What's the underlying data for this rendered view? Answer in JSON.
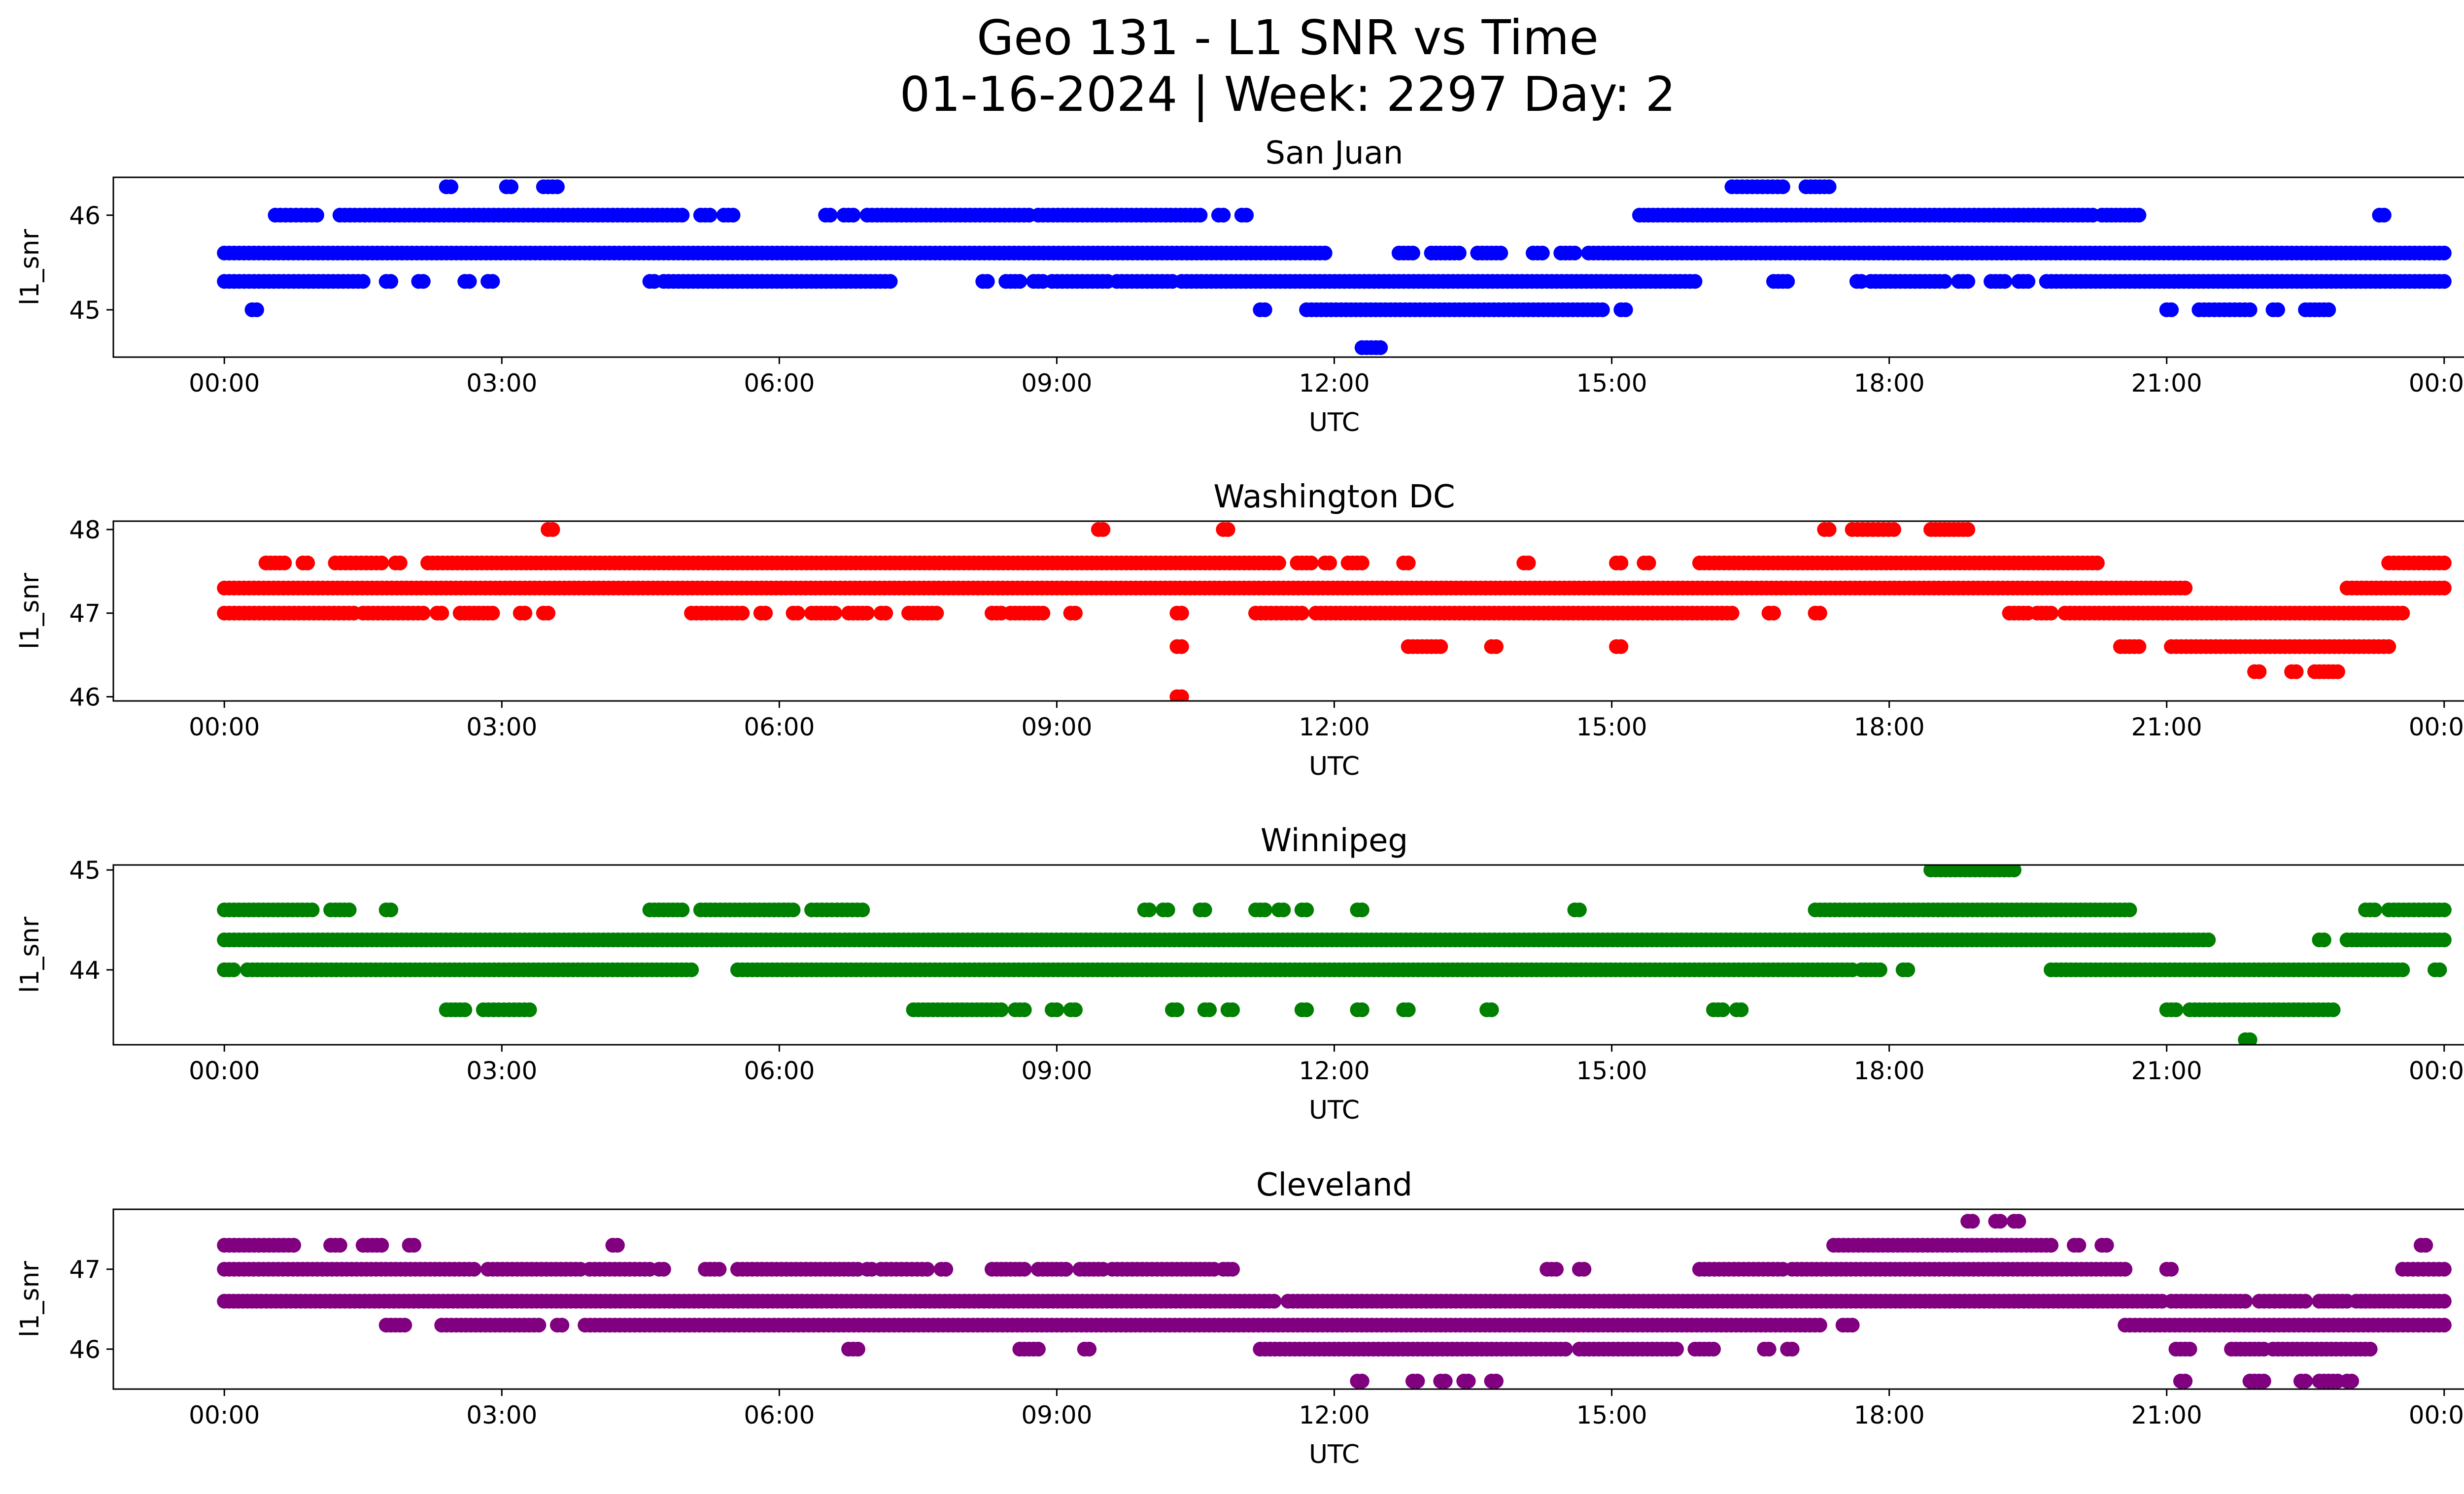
{
  "figure": {
    "title_line1": "Geo 131 - L1 SNR vs Time",
    "title_line2": "01-16-2024 | Week: 2297 Day: 2"
  },
  "chart_data": [
    {
      "type": "scatter",
      "title": "San Juan",
      "xlabel": "UTC",
      "ylabel": "l1_snr",
      "color": "#0000ff",
      "x_ticks": [
        "00:00",
        "03:00",
        "06:00",
        "09:00",
        "12:00",
        "15:00",
        "18:00",
        "21:00",
        "00:00"
      ],
      "x_range_hours": [
        -1.2,
        25.2
      ],
      "y_ticks": [
        45,
        46
      ],
      "ylim": [
        44.5,
        46.4
      ],
      "series": [
        {
          "y": 46.3,
          "runs": [
            [
              2.4,
              2.45
            ],
            [
              3.05,
              3.1
            ],
            [
              3.45,
              3.6
            ],
            [
              16.3,
              16.85
            ],
            [
              17.1,
              17.35
            ]
          ]
        },
        {
          "y": 46.0,
          "runs": [
            [
              0.55,
              1.0
            ],
            [
              1.25,
              4.95
            ],
            [
              5.15,
              5.25
            ],
            [
              5.4,
              5.5
            ],
            [
              6.5,
              6.55
            ],
            [
              6.7,
              6.8
            ],
            [
              6.95,
              8.7
            ],
            [
              8.8,
              10.55
            ],
            [
              10.75,
              10.8
            ],
            [
              11.0,
              11.05
            ],
            [
              15.3,
              15.45
            ],
            [
              15.5,
              20.2
            ],
            [
              20.3,
              20.7
            ],
            [
              23.3,
              23.35
            ]
          ]
        },
        {
          "y": 45.6,
          "runs": [
            [
              0.0,
              11.9
            ],
            [
              12.7,
              12.85
            ],
            [
              13.05,
              13.35
            ],
            [
              13.55,
              13.8
            ],
            [
              14.15,
              14.25
            ],
            [
              14.45,
              14.6
            ],
            [
              14.75,
              24.0
            ]
          ]
        },
        {
          "y": 45.3,
          "runs": [
            [
              0.0,
              1.5
            ],
            [
              1.75,
              1.8
            ],
            [
              2.1,
              2.15
            ],
            [
              2.6,
              2.65
            ],
            [
              2.85,
              2.9
            ],
            [
              4.6,
              4.65
            ],
            [
              4.75,
              7.2
            ],
            [
              8.2,
              8.25
            ],
            [
              8.45,
              8.6
            ],
            [
              8.75,
              8.85
            ],
            [
              8.95,
              9.55
            ],
            [
              9.65,
              10.25
            ],
            [
              10.35,
              15.9
            ],
            [
              16.75,
              16.9
            ],
            [
              17.65,
              17.7
            ],
            [
              17.8,
              18.6
            ],
            [
              18.75,
              18.85
            ],
            [
              19.1,
              19.25
            ],
            [
              19.4,
              19.5
            ],
            [
              19.7,
              24.0
            ]
          ]
        },
        {
          "y": 45.0,
          "runs": [
            [
              0.3,
              0.35
            ],
            [
              11.2,
              11.25
            ],
            [
              11.7,
              14.9
            ],
            [
              15.1,
              15.15
            ],
            [
              21.0,
              21.05
            ],
            [
              21.35,
              21.9
            ],
            [
              22.15,
              22.2
            ],
            [
              22.5,
              22.75
            ]
          ]
        },
        {
          "y": 44.6,
          "runs": [
            [
              12.3,
              12.5
            ]
          ]
        }
      ]
    },
    {
      "type": "scatter",
      "title": "Washington DC",
      "xlabel": "UTC",
      "ylabel": "l1_snr",
      "color": "#ff0000",
      "x_ticks": [
        "00:00",
        "03:00",
        "06:00",
        "09:00",
        "12:00",
        "15:00",
        "18:00",
        "21:00",
        "00:00"
      ],
      "x_range_hours": [
        -1.2,
        25.2
      ],
      "y_ticks": [
        46,
        47,
        48
      ],
      "ylim": [
        45.95,
        48.1
      ],
      "series": [
        {
          "y": 48.0,
          "runs": [
            [
              3.5,
              3.55
            ],
            [
              9.45,
              9.5
            ],
            [
              10.8,
              10.85
            ],
            [
              17.3,
              17.35
            ],
            [
              17.6,
              18.05
            ],
            [
              18.45,
              18.85
            ]
          ]
        },
        {
          "y": 47.6,
          "runs": [
            [
              0.45,
              0.65
            ],
            [
              0.85,
              0.9
            ],
            [
              1.2,
              1.7
            ],
            [
              1.85,
              1.9
            ],
            [
              2.2,
              11.4
            ],
            [
              11.6,
              11.75
            ],
            [
              11.9,
              11.95
            ],
            [
              12.15,
              12.3
            ],
            [
              12.75,
              12.8
            ],
            [
              14.05,
              14.1
            ],
            [
              15.05,
              15.1
            ],
            [
              15.35,
              15.4
            ],
            [
              15.95,
              20.25
            ],
            [
              23.4,
              24.0
            ]
          ]
        },
        {
          "y": 47.3,
          "runs": [
            [
              0.0,
              21.2
            ],
            [
              22.95,
              24.0
            ]
          ]
        },
        {
          "y": 47.0,
          "runs": [
            [
              0.0,
              1.4
            ],
            [
              1.5,
              2.15
            ],
            [
              2.3,
              2.35
            ],
            [
              2.55,
              2.9
            ],
            [
              3.2,
              3.25
            ],
            [
              3.45,
              3.5
            ],
            [
              5.05,
              5.6
            ],
            [
              5.8,
              5.85
            ],
            [
              6.15,
              6.2
            ],
            [
              6.35,
              6.6
            ],
            [
              6.75,
              6.95
            ],
            [
              7.1,
              7.15
            ],
            [
              7.4,
              7.7
            ],
            [
              8.3,
              8.4
            ],
            [
              8.5,
              8.85
            ],
            [
              9.15,
              9.2
            ],
            [
              10.3,
              10.35
            ],
            [
              11.15,
              11.65
            ],
            [
              11.8,
              16.3
            ],
            [
              16.7,
              16.75
            ],
            [
              17.2,
              17.25
            ],
            [
              19.3,
              19.5
            ],
            [
              19.6,
              19.75
            ],
            [
              19.9,
              23.55
            ]
          ]
        },
        {
          "y": 46.6,
          "runs": [
            [
              10.3,
              10.35
            ],
            [
              12.8,
              13.15
            ],
            [
              13.7,
              13.75
            ],
            [
              15.05,
              15.1
            ],
            [
              20.5,
              20.7
            ],
            [
              21.05,
              23.4
            ]
          ]
        },
        {
          "y": 46.3,
          "runs": [
            [
              21.95,
              22.0
            ],
            [
              22.35,
              22.4
            ],
            [
              22.6,
              22.85
            ]
          ]
        },
        {
          "y": 46.0,
          "runs": [
            [
              10.3,
              10.35
            ]
          ]
        }
      ]
    },
    {
      "type": "scatter",
      "title": "Winnipeg",
      "xlabel": "UTC",
      "ylabel": "l1_snr",
      "color": "#008000",
      "x_ticks": [
        "00:00",
        "03:00",
        "06:00",
        "09:00",
        "12:00",
        "15:00",
        "18:00",
        "21:00",
        "00:00"
      ],
      "x_range_hours": [
        -1.2,
        25.2
      ],
      "y_ticks": [
        44,
        45
      ],
      "ylim": [
        43.25,
        45.05
      ],
      "series": [
        {
          "y": 45.0,
          "runs": [
            [
              18.45,
              19.35
            ]
          ]
        },
        {
          "y": 44.6,
          "runs": [
            [
              0.0,
              0.95
            ],
            [
              1.15,
              1.35
            ],
            [
              1.75,
              1.8
            ],
            [
              4.6,
              4.95
            ],
            [
              5.15,
              6.05
            ],
            [
              6.05,
              6.15
            ],
            [
              6.35,
              6.9
            ],
            [
              9.95,
              10.0
            ],
            [
              10.15,
              10.2
            ],
            [
              10.55,
              10.6
            ],
            [
              11.15,
              11.25
            ],
            [
              11.4,
              11.45
            ],
            [
              11.65,
              11.7
            ],
            [
              12.25,
              12.3
            ],
            [
              14.6,
              14.65
            ],
            [
              17.2,
              20.6
            ],
            [
              23.15,
              23.25
            ],
            [
              23.4,
              24.0
            ]
          ]
        },
        {
          "y": 44.3,
          "runs": [
            [
              0.0,
              21.45
            ],
            [
              22.65,
              22.7
            ],
            [
              22.95,
              24.0
            ]
          ]
        },
        {
          "y": 44.0,
          "runs": [
            [
              0.0,
              0.1
            ],
            [
              0.25,
              5.05
            ],
            [
              5.55,
              17.6
            ],
            [
              17.7,
              17.9
            ],
            [
              18.15,
              18.2
            ],
            [
              19.75,
              23.55
            ],
            [
              23.9,
              23.95
            ]
          ]
        },
        {
          "y": 43.6,
          "runs": [
            [
              2.4,
              2.6
            ],
            [
              2.8,
              3.3
            ],
            [
              7.45,
              8.4
            ],
            [
              8.55,
              8.65
            ],
            [
              8.95,
              9.0
            ],
            [
              9.15,
              9.2
            ],
            [
              10.25,
              10.3
            ],
            [
              10.6,
              10.65
            ],
            [
              10.85,
              10.9
            ],
            [
              11.65,
              11.7
            ],
            [
              12.25,
              12.3
            ],
            [
              12.75,
              12.8
            ],
            [
              13.65,
              13.7
            ],
            [
              16.1,
              16.2
            ],
            [
              16.35,
              16.4
            ],
            [
              21.0,
              21.1
            ],
            [
              21.25,
              22.8
            ]
          ]
        },
        {
          "y": 43.3,
          "runs": [
            [
              21.85,
              21.9
            ]
          ]
        }
      ]
    },
    {
      "type": "scatter",
      "title": "Cleveland",
      "xlabel": "UTC",
      "ylabel": "l1_snr",
      "color": "#800080",
      "x_ticks": [
        "00:00",
        "03:00",
        "06:00",
        "09:00",
        "12:00",
        "15:00",
        "18:00",
        "21:00",
        "00:00"
      ],
      "x_range_hours": [
        -1.2,
        25.2
      ],
      "y_ticks": [
        46,
        47
      ],
      "ylim": [
        45.5,
        47.75
      ],
      "series": [
        {
          "y": 47.6,
          "runs": [
            [
              18.85,
              18.9
            ],
            [
              19.15,
              19.2
            ],
            [
              19.35,
              19.4
            ]
          ]
        },
        {
          "y": 47.3,
          "runs": [
            [
              0.0,
              0.75
            ],
            [
              1.15,
              1.25
            ],
            [
              1.5,
              1.7
            ],
            [
              2.0,
              2.05
            ],
            [
              4.2,
              4.25
            ],
            [
              17.4,
              19.75
            ],
            [
              20.0,
              20.05
            ],
            [
              20.3,
              20.35
            ],
            [
              23.75,
              23.8
            ]
          ]
        },
        {
          "y": 47.0,
          "runs": [
            [
              0.0,
              2.7
            ],
            [
              2.85,
              3.85
            ],
            [
              3.95,
              4.6
            ],
            [
              4.7,
              4.75
            ],
            [
              5.2,
              5.35
            ],
            [
              5.55,
              6.55
            ],
            [
              6.6,
              6.85
            ],
            [
              6.95,
              7.0
            ],
            [
              7.1,
              7.6
            ],
            [
              7.75,
              7.8
            ],
            [
              8.3,
              8.65
            ],
            [
              8.8,
              9.1
            ],
            [
              9.25,
              9.5
            ],
            [
              9.6,
              10.3
            ],
            [
              10.35,
              10.7
            ],
            [
              10.8,
              10.9
            ],
            [
              14.3,
              14.4
            ],
            [
              14.65,
              14.7
            ],
            [
              15.95,
              16.85
            ],
            [
              16.95,
              20.45
            ],
            [
              20.5,
              20.55
            ],
            [
              21.0,
              21.05
            ],
            [
              23.55,
              24.0
            ]
          ]
        },
        {
          "y": 46.6,
          "runs": [
            [
              0.0,
              0.35
            ],
            [
              0.4,
              11.35
            ],
            [
              11.5,
              20.95
            ],
            [
              21.05,
              21.85
            ],
            [
              22.0,
              22.5
            ],
            [
              22.65,
              22.95
            ],
            [
              23.05,
              23.4
            ],
            [
              23.45,
              24.0
            ]
          ]
        },
        {
          "y": 46.3,
          "runs": [
            [
              1.75,
              1.95
            ],
            [
              2.35,
              3.4
            ],
            [
              3.6,
              3.65
            ],
            [
              3.9,
              6.05
            ],
            [
              6.1,
              7.35
            ],
            [
              7.4,
              9.8
            ],
            [
              9.85,
              17.25
            ],
            [
              17.5,
              17.6
            ],
            [
              20.55,
              23.45
            ],
            [
              23.5,
              24.0
            ]
          ]
        },
        {
          "y": 46.0,
          "runs": [
            [
              6.75,
              6.85
            ],
            [
              8.6,
              8.8
            ],
            [
              9.3,
              9.35
            ],
            [
              11.2,
              14.5
            ],
            [
              14.65,
              15.7
            ],
            [
              15.9,
              16.1
            ],
            [
              16.65,
              16.7
            ],
            [
              16.9,
              16.95
            ],
            [
              21.1,
              21.25
            ],
            [
              21.7,
              22.05
            ],
            [
              22.15,
              23.2
            ]
          ]
        },
        {
          "y": 45.6,
          "runs": [
            [
              12.25,
              12.3
            ],
            [
              12.85,
              12.9
            ],
            [
              13.15,
              13.2
            ],
            [
              13.4,
              13.45
            ],
            [
              13.7,
              13.75
            ],
            [
              21.15,
              21.2
            ],
            [
              21.9,
              22.05
            ],
            [
              22.45,
              22.5
            ],
            [
              22.65,
              22.85
            ],
            [
              22.95,
              23.0
            ]
          ]
        }
      ]
    }
  ]
}
